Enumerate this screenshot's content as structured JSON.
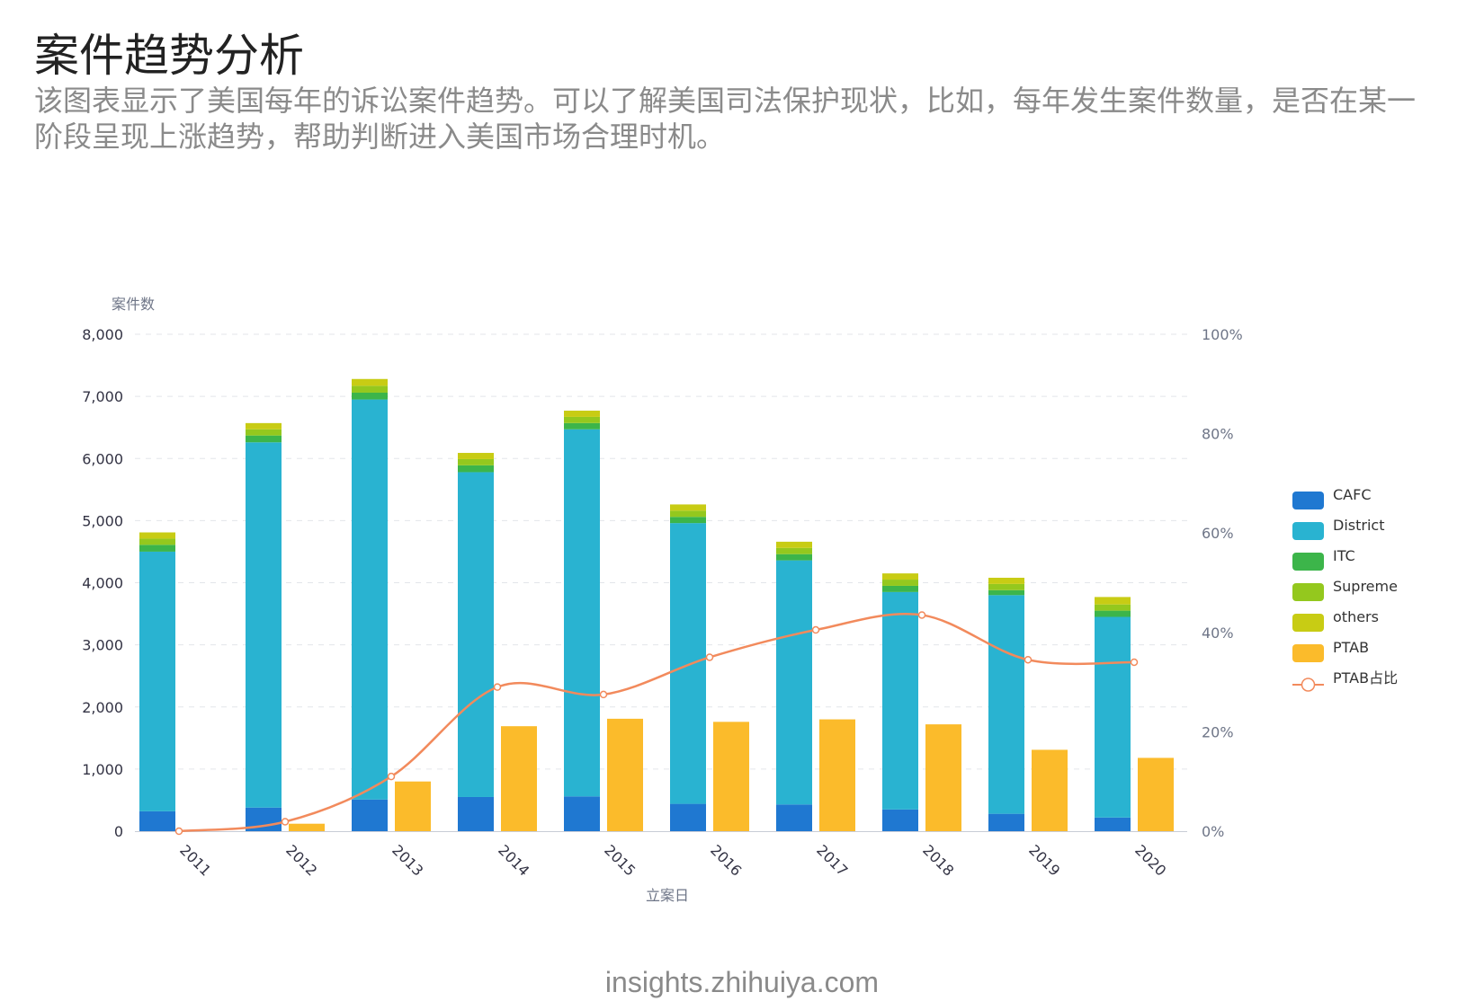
{
  "header": {
    "title": "案件趋势分析",
    "description": "该图表显示了美国每年的诉讼案件趋势。可以了解美国司法保护现状，比如，每年发生案件数量，是否在某一阶段呈现上涨趋势，帮助判断进入美国市场合理时机。"
  },
  "footer": {
    "source": "insights.zhihuiya.com"
  },
  "chart_data": {
    "type": "bar",
    "stacked": true,
    "xlabel": "立案日",
    "ylabel": "案件数",
    "categories": [
      "2011",
      "2012",
      "2013",
      "2014",
      "2015",
      "2016",
      "2017",
      "2018",
      "2019",
      "2020"
    ],
    "ylim": [
      0,
      8000
    ],
    "yticks": [
      0,
      1000,
      2000,
      3000,
      4000,
      5000,
      6000,
      7000,
      8000
    ],
    "ytick_labels": [
      "0",
      "1,000",
      "2,000",
      "3,000",
      "4,000",
      "5,000",
      "6,000",
      "7,000",
      "8,000"
    ],
    "y2lim": [
      0,
      100
    ],
    "y2ticks": [
      0,
      20,
      40,
      60,
      80,
      100
    ],
    "y2tick_labels": [
      "0%",
      "20%",
      "40%",
      "60%",
      "80%",
      "100%"
    ],
    "grid": true,
    "legend_position": "right",
    "stacked_series": [
      {
        "name": "CAFC",
        "color": "#1f78d1",
        "values": [
          320,
          380,
          510,
          550,
          560,
          440,
          430,
          350,
          280,
          220
        ]
      },
      {
        "name": "District",
        "color": "#29b3d1",
        "values": [
          4180,
          5880,
          6440,
          5230,
          5910,
          4520,
          3930,
          3500,
          3520,
          3230
        ]
      },
      {
        "name": "ITC",
        "color": "#3cb54a",
        "values": [
          110,
          110,
          110,
          110,
          100,
          100,
          100,
          100,
          80,
          100
        ]
      },
      {
        "name": "Supreme",
        "color": "#94c81e",
        "values": [
          100,
          100,
          110,
          100,
          100,
          100,
          100,
          100,
          100,
          100
        ]
      },
      {
        "name": "others",
        "color": "#c8cc14",
        "values": [
          100,
          100,
          110,
          100,
          100,
          100,
          100,
          100,
          100,
          120
        ]
      }
    ],
    "bar_series": [
      {
        "name": "PTAB",
        "color": "#fbbb2b",
        "values": [
          0,
          120,
          800,
          1690,
          1810,
          1760,
          1800,
          1720,
          1310,
          1180
        ]
      }
    ],
    "line_series": [
      {
        "name": "PTAB占比",
        "color": "#f28a5c",
        "axis": "right",
        "values": [
          0,
          1.9,
          11,
          29,
          27.5,
          35,
          40.5,
          43.5,
          34.5,
          34
        ]
      }
    ]
  }
}
